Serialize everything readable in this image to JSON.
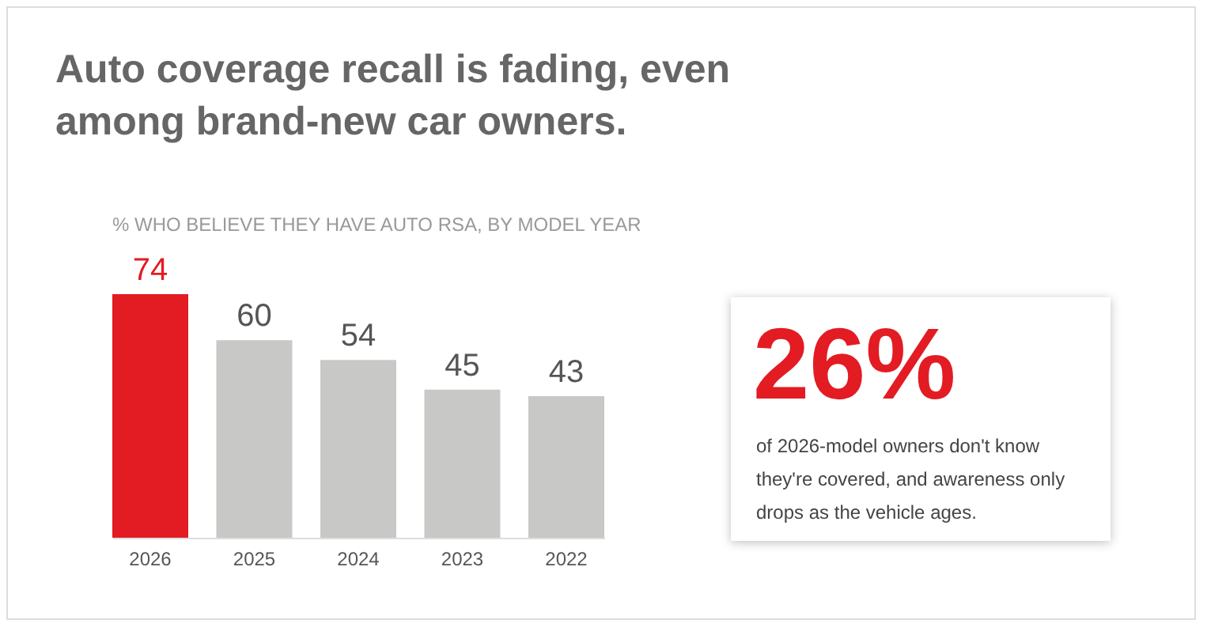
{
  "chart_data": [
    {
      "type": "bar",
      "title": "Auto coverage recall is fading, even among brand-new car owners.",
      "subtitle": "% WHO BELIEVE THEY HAVE AUTO RSA, BY MODEL YEAR",
      "categories": [
        "2026",
        "2025",
        "2024",
        "2023",
        "2022"
      ],
      "values": [
        74,
        60,
        54,
        45,
        43
      ],
      "colors": [
        "#e31b23",
        "#c8c8c6",
        "#c8c8c6",
        "#c8c8c6",
        "#c8c8c6"
      ],
      "data_labels": true
    },
    {
      "type": "other",
      "title": "26%",
      "annotations": [
        "of 2026-model owners don't know they're covered, and awareness only drops as the vehicle ages."
      ]
    }
  ]
}
